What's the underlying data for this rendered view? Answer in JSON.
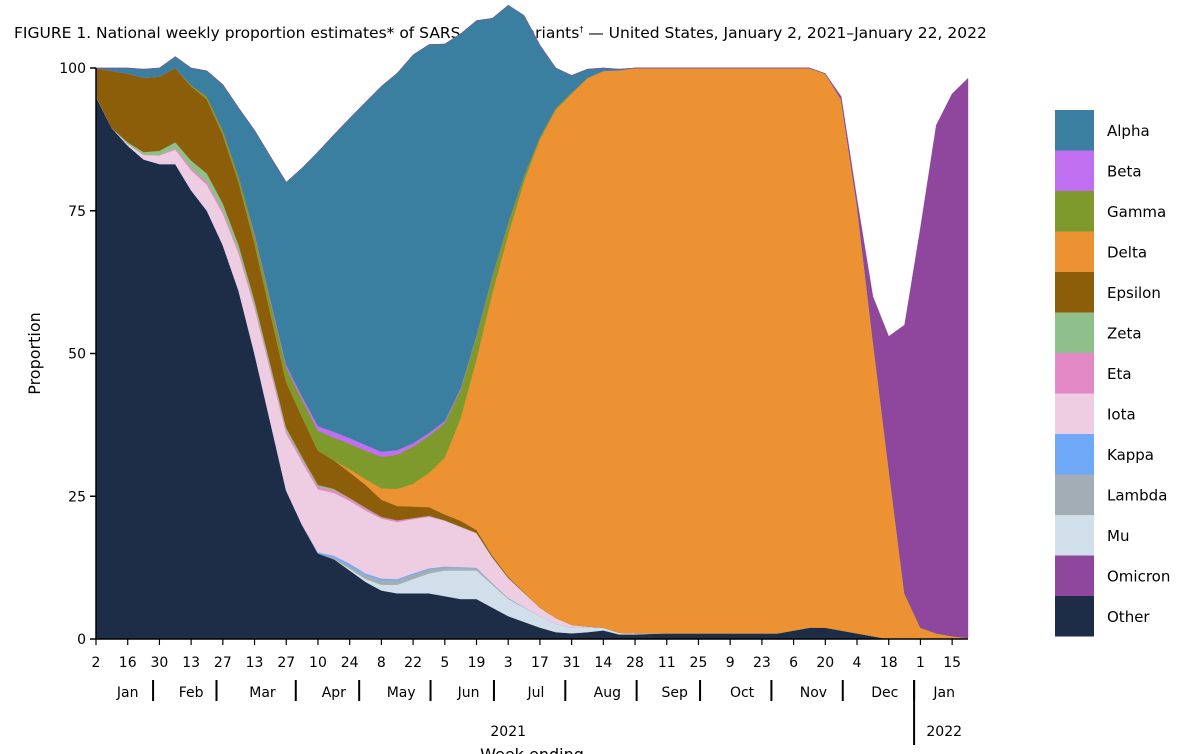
{
  "chart_data": {
    "type": "area",
    "title_main": "FIGURE 1. National weekly proportion estimates* of SARS-CoV-2 variants",
    "title_mark": "†",
    "title_tail": " — United States, January 2, 2021–January 22, 2022",
    "ylabel": "Proportion",
    "xlabel": "Week ending",
    "ylim": [
      0,
      100
    ],
    "yticks": [
      0,
      25,
      50,
      75,
      100
    ],
    "week_labels": [
      "2",
      "16",
      "30",
      "13",
      "27",
      "13",
      "27",
      "10",
      "24",
      "8",
      "22",
      "5",
      "19",
      "3",
      "17",
      "31",
      "14",
      "28",
      "11",
      "25",
      "9",
      "23",
      "6",
      "20",
      "4",
      "18",
      "1",
      "15"
    ],
    "week_index": [
      0,
      2,
      4,
      6,
      8,
      10,
      12,
      14,
      16,
      18,
      20,
      22,
      24,
      26,
      28,
      30,
      32,
      34,
      36,
      38,
      40,
      42,
      44,
      46,
      48,
      50,
      52,
      54
    ],
    "months": [
      {
        "label": "Jan",
        "start": 0,
        "end": 4
      },
      {
        "label": "Feb",
        "start": 4,
        "end": 8
      },
      {
        "label": "Mar",
        "start": 8,
        "end": 13
      },
      {
        "label": "Apr",
        "start": 13,
        "end": 17
      },
      {
        "label": "May",
        "start": 17,
        "end": 21.5
      },
      {
        "label": "Jun",
        "start": 21.5,
        "end": 25.5
      },
      {
        "label": "Jul",
        "start": 25.5,
        "end": 30
      },
      {
        "label": "Aug",
        "start": 30,
        "end": 34.5
      },
      {
        "label": "Sep",
        "start": 34.5,
        "end": 38.5
      },
      {
        "label": "Oct",
        "start": 38.5,
        "end": 43
      },
      {
        "label": "Nov",
        "start": 43,
        "end": 47.5
      },
      {
        "label": "Dec",
        "start": 47.5,
        "end": 52
      },
      {
        "label": "Jan",
        "start": 52,
        "end": 55
      }
    ],
    "years": [
      {
        "label": "2021",
        "start": 0,
        "end": 52
      },
      {
        "label": "2022",
        "start": 52,
        "end": 55
      }
    ],
    "x_count": 56,
    "stack_order": [
      "Other",
      "Mu",
      "Lambda",
      "Kappa",
      "Iota",
      "Eta",
      "Zeta",
      "Epsilon",
      "Delta",
      "Gamma",
      "Beta",
      "Alpha",
      "Omicron"
    ],
    "series": [
      {
        "name": "Alpha",
        "color": "#3a7fa0",
        "values": [
          0,
          0.5,
          1,
          1.5,
          1.5,
          2,
          3,
          4.5,
          8,
          12,
          18,
          25,
          32,
          40,
          48,
          52,
          56,
          60,
          64,
          66,
          68,
          68,
          66,
          62,
          55,
          45,
          38,
          28,
          16,
          7,
          3,
          1.5,
          0.5,
          0.2,
          0,
          0,
          0,
          0,
          0,
          0,
          0,
          0,
          0,
          0,
          0,
          0,
          0,
          0,
          0,
          0,
          0,
          0,
          0,
          0,
          0,
          0
        ]
      },
      {
        "name": "Beta",
        "color": "#c06ff0",
        "values": [
          0,
          0,
          0,
          0,
          0,
          0,
          0,
          0,
          0,
          0,
          0.3,
          0.4,
          0.5,
          0.6,
          0.8,
          1,
          1,
          1,
          0.9,
          0.8,
          0.6,
          0.5,
          0.4,
          0.3,
          0.2,
          0.1,
          0.1,
          0,
          0,
          0,
          0,
          0,
          0,
          0,
          0,
          0,
          0,
          0,
          0,
          0,
          0,
          0,
          0,
          0,
          0,
          0,
          0,
          0,
          0,
          0,
          0,
          0,
          0,
          0,
          0,
          0
        ]
      },
      {
        "name": "Gamma",
        "color": "#7f9a2c",
        "values": [
          0,
          0,
          0,
          0,
          0,
          0,
          0.2,
          0.5,
          0.8,
          1,
          1.5,
          2,
          2.5,
          3,
          3.5,
          4,
          4.5,
          5,
          5.5,
          6,
          6.5,
          6.5,
          6,
          5,
          4,
          3,
          2,
          1,
          0.5,
          0.3,
          0.2,
          0.1,
          0,
          0,
          0,
          0,
          0,
          0,
          0,
          0,
          0,
          0,
          0,
          0,
          0,
          0,
          0,
          0,
          0,
          0,
          0,
          0,
          0,
          0,
          0,
          0
        ]
      },
      {
        "name": "Delta",
        "color": "#ec9233",
        "values": [
          0,
          0,
          0,
          0,
          0,
          0,
          0,
          0,
          0,
          0,
          0,
          0,
          0,
          0,
          0,
          0,
          0.5,
          1,
          2,
          3,
          4,
          6,
          10,
          18,
          30,
          46,
          60,
          72,
          82,
          89,
          93,
          96,
          97.5,
          98.5,
          99,
          99,
          99,
          99,
          99,
          99,
          99,
          99,
          99,
          99,
          98.5,
          98,
          97,
          93,
          75,
          52,
          30,
          8,
          2,
          1,
          0.5,
          0.2
        ]
      },
      {
        "name": "Epsilon",
        "color": "#8c5e0a",
        "values": [
          5,
          10,
          12,
          13,
          13,
          13,
          13,
          13,
          12,
          11,
          10,
          9,
          8,
          7,
          6,
          5,
          4.5,
          4,
          3,
          2.5,
          2,
          1.5,
          1,
          1,
          0.5,
          0.3,
          0.2,
          0.1,
          0,
          0,
          0,
          0,
          0,
          0,
          0,
          0,
          0,
          0,
          0,
          0,
          0,
          0,
          0,
          0,
          0,
          0,
          0,
          0,
          0,
          0,
          0,
          0,
          0,
          0,
          0,
          0
        ]
      },
      {
        "name": "Zeta",
        "color": "#8fc08b",
        "values": [
          0,
          0,
          0.3,
          0.5,
          0.8,
          1,
          1.3,
          1.5,
          1.3,
          1,
          0.8,
          0.6,
          0.5,
          0.4,
          0.3,
          0.2,
          0.1,
          0.1,
          0,
          0,
          0,
          0,
          0,
          0,
          0,
          0,
          0,
          0,
          0,
          0,
          0,
          0,
          0,
          0,
          0,
          0,
          0,
          0,
          0,
          0,
          0,
          0,
          0,
          0,
          0,
          0,
          0,
          0,
          0,
          0,
          0,
          0,
          0,
          0,
          0,
          0
        ]
      },
      {
        "name": "Eta",
        "color": "#e38ac6",
        "values": [
          0,
          0,
          0,
          0,
          0,
          0.3,
          0.4,
          0.5,
          0.5,
          0.5,
          0.5,
          0.5,
          0.5,
          0.5,
          0.5,
          0.5,
          0.4,
          0.4,
          0.3,
          0.3,
          0.2,
          0.2,
          0.1,
          0.1,
          0.1,
          0,
          0,
          0,
          0,
          0,
          0,
          0,
          0,
          0,
          0,
          0,
          0,
          0,
          0,
          0,
          0,
          0,
          0,
          0,
          0,
          0,
          0,
          0,
          0,
          0,
          0,
          0,
          0,
          0,
          0,
          0
        ]
      },
      {
        "name": "Iota",
        "color": "#eecde3",
        "values": [
          0,
          0,
          0.3,
          0.8,
          1.5,
          2.5,
          3.5,
          4.5,
          5.5,
          6.5,
          8,
          9,
          10,
          11,
          11,
          11,
          11,
          11,
          10.5,
          10,
          9.5,
          9,
          8,
          7,
          6,
          4.5,
          3.5,
          2.5,
          1.5,
          1,
          0.5,
          0.2,
          0,
          0,
          0,
          0,
          0,
          0,
          0,
          0,
          0,
          0,
          0,
          0,
          0,
          0,
          0,
          0,
          0,
          0,
          0,
          0,
          0,
          0,
          0,
          0
        ]
      },
      {
        "name": "Kappa",
        "color": "#6fa8f7",
        "values": [
          0,
          0,
          0,
          0,
          0,
          0,
          0,
          0,
          0,
          0,
          0,
          0,
          0,
          0,
          0.2,
          0.3,
          0.4,
          0.3,
          0.3,
          0.2,
          0.2,
          0.2,
          0.1,
          0.1,
          0.1,
          0,
          0,
          0,
          0,
          0,
          0,
          0,
          0,
          0,
          0,
          0,
          0,
          0,
          0,
          0,
          0,
          0,
          0,
          0,
          0,
          0,
          0,
          0,
          0,
          0,
          0,
          0,
          0,
          0,
          0,
          0
        ]
      },
      {
        "name": "Lambda",
        "color": "#a3adb6",
        "values": [
          0,
          0,
          0,
          0,
          0,
          0,
          0,
          0,
          0,
          0,
          0,
          0,
          0,
          0,
          0,
          0.3,
          0.5,
          0.7,
          0.8,
          0.8,
          0.8,
          0.7,
          0.6,
          0.5,
          0.4,
          0.3,
          0.2,
          0.1,
          0,
          0,
          0,
          0,
          0,
          0,
          0,
          0,
          0,
          0,
          0,
          0,
          0,
          0,
          0,
          0,
          0,
          0,
          0,
          0,
          0,
          0,
          0,
          0,
          0,
          0,
          0,
          0
        ]
      },
      {
        "name": "Mu",
        "color": "#d0dfe9",
        "values": [
          0,
          0,
          0,
          0,
          0,
          0,
          0,
          0,
          0,
          0,
          0,
          0,
          0,
          0,
          0,
          0,
          0.3,
          0.5,
          1,
          1.5,
          2.5,
          3.5,
          4.5,
          5,
          5,
          4,
          3,
          2.5,
          2,
          1.5,
          1,
          0.8,
          0.5,
          0.3,
          0.2,
          0.1,
          0,
          0,
          0,
          0,
          0,
          0,
          0,
          0,
          0,
          0,
          0,
          0,
          0,
          0,
          0,
          0,
          0,
          0,
          0,
          0
        ]
      },
      {
        "name": "Omicron",
        "color": "#8e479c",
        "values": [
          0,
          0,
          0,
          0,
          0,
          0,
          0,
          0,
          0,
          0,
          0,
          0,
          0,
          0,
          0,
          0,
          0,
          0,
          0,
          0,
          0,
          0,
          0,
          0,
          0,
          0,
          0,
          0,
          0,
          0,
          0,
          0,
          0,
          0,
          0,
          0,
          0,
          0,
          0,
          0,
          0,
          0,
          0,
          0,
          0,
          0,
          0,
          0.5,
          1,
          7.5,
          23,
          47,
          70,
          89,
          95,
          98
        ]
      },
      {
        "name": "Other",
        "color": "#1d2c47",
        "values": [
          95,
          89.5,
          86.4,
          84,
          83.2,
          83.2,
          78.6,
          75,
          69,
          61,
          50,
          38,
          26,
          20,
          15,
          14,
          12,
          10,
          8.5,
          8,
          8,
          8,
          7.5,
          7,
          7,
          5.5,
          4,
          3,
          2,
          1.2,
          1,
          1.2,
          1.5,
          0.8,
          0.8,
          0.9,
          1,
          1,
          1,
          1,
          1,
          1,
          1,
          1,
          1.5,
          2,
          2,
          1.5,
          1,
          0.5,
          0,
          0,
          0,
          0,
          0,
          0
        ]
      }
    ],
    "legend": [
      "Alpha",
      "Beta",
      "Gamma",
      "Delta",
      "Epsilon",
      "Zeta",
      "Eta",
      "Iota",
      "Kappa",
      "Lambda",
      "Mu",
      "Omicron",
      "Other"
    ]
  }
}
